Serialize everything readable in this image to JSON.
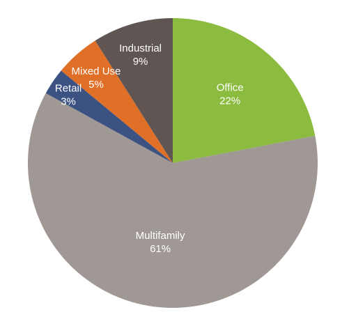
{
  "chart_data": {
    "type": "pie",
    "start_angle_deg": 0,
    "direction": "clockwise",
    "slices": [
      {
        "name": "Office",
        "value": 22,
        "label_line1": "Office",
        "label_line2": "22%",
        "color": "#8BBB3F"
      },
      {
        "name": "Multifamily",
        "value": 61,
        "label_line1": "Multifamily",
        "label_line2": "61%",
        "color": "#A09894"
      },
      {
        "name": "Retail",
        "value": 3,
        "label_line1": "Retail",
        "label_line2": "3%",
        "color": "#3B5282"
      },
      {
        "name": "Mixed Use",
        "value": 5,
        "label_line1": "Mixed Use",
        "label_line2": "5%",
        "color": "#E07027"
      },
      {
        "name": "Industrial",
        "value": 9,
        "label_line1": "Industrial",
        "label_line2": "9%",
        "color": "#5F5552"
      }
    ]
  }
}
